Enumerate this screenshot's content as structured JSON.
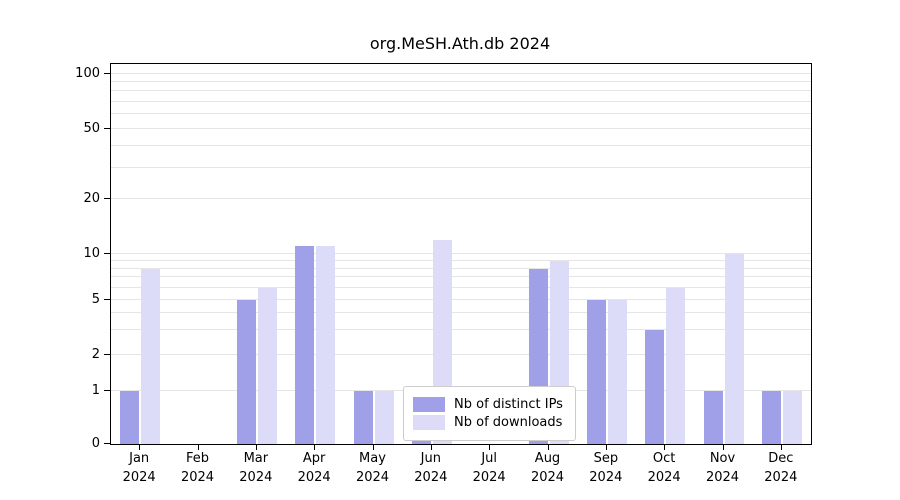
{
  "chart_data": {
    "type": "bar",
    "title": "org.MeSH.Ath.db 2024",
    "year_label": "2024",
    "months": [
      "Jan",
      "Feb",
      "Mar",
      "Apr",
      "May",
      "Jun",
      "Jul",
      "Aug",
      "Sep",
      "Oct",
      "Nov",
      "Dec"
    ],
    "series": [
      {
        "name": "Nb of distinct IPs",
        "color": "#a0a0e8",
        "values": [
          1,
          0,
          5,
          11,
          1,
          1,
          0,
          8,
          5,
          3,
          1,
          1
        ]
      },
      {
        "name": "Nb of downloads",
        "color": "#dcdcf8",
        "values": [
          8,
          0,
          6,
          11,
          1,
          12,
          0,
          9,
          5,
          6,
          10,
          1
        ]
      }
    ],
    "yticks": [
      0,
      1,
      2,
      5,
      10,
      20,
      50,
      100
    ],
    "grid_values": [
      1,
      2,
      3,
      4,
      5,
      6,
      7,
      8,
      9,
      10,
      20,
      30,
      40,
      50,
      60,
      70,
      80,
      90,
      100
    ],
    "ylim": [
      0,
      100
    ],
    "legend_position": "bottom-center",
    "grid": "on",
    "axis_color": "#000000",
    "grid_color": "#e5e5e5",
    "background_color": "#ffffff"
  }
}
